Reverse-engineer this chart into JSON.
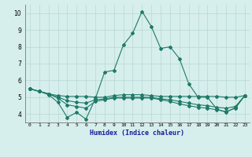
{
  "xlabel": "Humidex (Indice chaleur)",
  "x": [
    0,
    1,
    2,
    3,
    4,
    5,
    6,
    7,
    8,
    9,
    10,
    11,
    12,
    13,
    14,
    15,
    16,
    17,
    18,
    19,
    20,
    21,
    22,
    23
  ],
  "series": [
    [
      5.5,
      5.35,
      5.15,
      4.7,
      3.8,
      4.1,
      3.7,
      4.9,
      6.5,
      6.6,
      8.1,
      8.8,
      10.1,
      9.2,
      7.9,
      8.0,
      7.3,
      5.8,
      5.0,
      5.0,
      4.3,
      4.1,
      4.4,
      5.1
    ],
    [
      5.5,
      5.35,
      5.2,
      5.1,
      5.05,
      5.05,
      5.05,
      5.0,
      5.0,
      5.1,
      5.15,
      5.15,
      5.15,
      5.1,
      5.05,
      5.05,
      5.05,
      5.05,
      5.05,
      5.05,
      5.05,
      5.0,
      5.0,
      5.1
    ],
    [
      5.5,
      5.35,
      5.2,
      5.0,
      4.8,
      4.7,
      4.65,
      4.85,
      4.9,
      5.0,
      5.0,
      5.0,
      5.0,
      5.0,
      4.9,
      4.85,
      4.75,
      4.65,
      4.55,
      4.5,
      4.4,
      4.35,
      4.45,
      5.1
    ],
    [
      5.5,
      5.35,
      5.2,
      4.95,
      4.55,
      4.45,
      4.35,
      4.75,
      4.85,
      4.95,
      4.95,
      4.95,
      4.95,
      4.95,
      4.85,
      4.75,
      4.6,
      4.5,
      4.4,
      4.35,
      4.25,
      4.15,
      4.35,
      5.1
    ]
  ],
  "line_color": "#1f7a68",
  "bg_color": "#d6eeec",
  "grid_color": "#b8d8d4",
  "ylim": [
    3.5,
    10.5
  ],
  "yticks": [
    4,
    5,
    6,
    7,
    8,
    9,
    10
  ],
  "xlim": [
    -0.5,
    23.5
  ],
  "markersize": 2.0
}
